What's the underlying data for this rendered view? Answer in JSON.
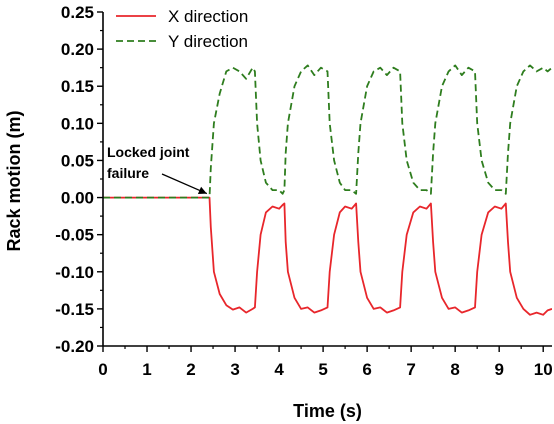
{
  "chart_data": {
    "type": "line",
    "xlabel": "Time (s)",
    "ylabel": "Rack motion (m)",
    "xlim": [
      0,
      10.2
    ],
    "ylim": [
      -0.2,
      0.25
    ],
    "xticks": [
      0,
      1,
      2,
      3,
      4,
      5,
      6,
      7,
      8,
      9,
      10
    ],
    "yticks": [
      -0.2,
      -0.15,
      -0.1,
      -0.05,
      0.0,
      0.05,
      0.1,
      0.15,
      0.2,
      0.25
    ],
    "ytick_labels": [
      "-0.20",
      "-0.15",
      "-0.10",
      "-0.05",
      "0.00",
      "0.05",
      "0.10",
      "0.15",
      "0.20",
      "0.25"
    ],
    "grid": false,
    "legend_position": "top-left",
    "annotation": {
      "lines": [
        "Locked joint",
        "failure"
      ],
      "x": 2.45,
      "y": 0.0
    },
    "series": [
      {
        "name": "X direction",
        "color": "#e8262b",
        "dash": "solid",
        "points": [
          [
            0,
            0
          ],
          [
            2.42,
            0
          ],
          [
            2.45,
            -0.04
          ],
          [
            2.52,
            -0.1
          ],
          [
            2.65,
            -0.13
          ],
          [
            2.8,
            -0.145
          ],
          [
            2.95,
            -0.151
          ],
          [
            3.1,
            -0.148
          ],
          [
            3.25,
            -0.155
          ],
          [
            3.4,
            -0.15
          ],
          [
            3.45,
            -0.148
          ],
          [
            3.5,
            -0.1
          ],
          [
            3.58,
            -0.05
          ],
          [
            3.7,
            -0.02
          ],
          [
            3.85,
            -0.012
          ],
          [
            4.0,
            -0.015
          ],
          [
            4.08,
            -0.01
          ],
          [
            4.12,
            -0.008
          ],
          [
            4.15,
            -0.06
          ],
          [
            4.2,
            -0.1
          ],
          [
            4.35,
            -0.135
          ],
          [
            4.5,
            -0.15
          ],
          [
            4.65,
            -0.148
          ],
          [
            4.8,
            -0.155
          ],
          [
            4.95,
            -0.152
          ],
          [
            5.1,
            -0.148
          ],
          [
            5.15,
            -0.1
          ],
          [
            5.25,
            -0.05
          ],
          [
            5.38,
            -0.02
          ],
          [
            5.5,
            -0.012
          ],
          [
            5.65,
            -0.015
          ],
          [
            5.75,
            -0.008
          ],
          [
            5.8,
            -0.06
          ],
          [
            5.85,
            -0.1
          ],
          [
            6.0,
            -0.135
          ],
          [
            6.15,
            -0.15
          ],
          [
            6.3,
            -0.148
          ],
          [
            6.45,
            -0.155
          ],
          [
            6.6,
            -0.152
          ],
          [
            6.75,
            -0.148
          ],
          [
            6.8,
            -0.1
          ],
          [
            6.9,
            -0.05
          ],
          [
            7.05,
            -0.02
          ],
          [
            7.2,
            -0.012
          ],
          [
            7.35,
            -0.015
          ],
          [
            7.45,
            -0.008
          ],
          [
            7.5,
            -0.06
          ],
          [
            7.55,
            -0.1
          ],
          [
            7.7,
            -0.135
          ],
          [
            7.85,
            -0.15
          ],
          [
            8.0,
            -0.148
          ],
          [
            8.15,
            -0.155
          ],
          [
            8.3,
            -0.152
          ],
          [
            8.45,
            -0.148
          ],
          [
            8.5,
            -0.1
          ],
          [
            8.6,
            -0.05
          ],
          [
            8.75,
            -0.02
          ],
          [
            8.9,
            -0.012
          ],
          [
            9.05,
            -0.015
          ],
          [
            9.15,
            -0.008
          ],
          [
            9.2,
            -0.06
          ],
          [
            9.25,
            -0.1
          ],
          [
            9.4,
            -0.135
          ],
          [
            9.55,
            -0.15
          ],
          [
            9.7,
            -0.158
          ],
          [
            9.85,
            -0.155
          ],
          [
            10.0,
            -0.158
          ],
          [
            10.1,
            -0.152
          ],
          [
            10.2,
            -0.15
          ]
        ]
      },
      {
        "name": "Y direction",
        "color": "#2e7d1e",
        "dash": "dashed",
        "points": [
          [
            0,
            0
          ],
          [
            2.42,
            0
          ],
          [
            2.45,
            0.04
          ],
          [
            2.52,
            0.1
          ],
          [
            2.65,
            0.14
          ],
          [
            2.8,
            0.17
          ],
          [
            2.95,
            0.175
          ],
          [
            3.1,
            0.17
          ],
          [
            3.25,
            0.16
          ],
          [
            3.4,
            0.175
          ],
          [
            3.45,
            0.17
          ],
          [
            3.5,
            0.1
          ],
          [
            3.58,
            0.05
          ],
          [
            3.7,
            0.02
          ],
          [
            3.85,
            0.01
          ],
          [
            4.0,
            0.01
          ],
          [
            4.08,
            0.005
          ],
          [
            4.12,
            0.01
          ],
          [
            4.15,
            0.06
          ],
          [
            4.2,
            0.1
          ],
          [
            4.35,
            0.15
          ],
          [
            4.5,
            0.17
          ],
          [
            4.65,
            0.178
          ],
          [
            4.8,
            0.165
          ],
          [
            4.95,
            0.175
          ],
          [
            5.1,
            0.17
          ],
          [
            5.15,
            0.1
          ],
          [
            5.25,
            0.05
          ],
          [
            5.38,
            0.02
          ],
          [
            5.5,
            0.01
          ],
          [
            5.65,
            0.01
          ],
          [
            5.75,
            0.005
          ],
          [
            5.8,
            0.06
          ],
          [
            5.85,
            0.1
          ],
          [
            6.0,
            0.15
          ],
          [
            6.15,
            0.17
          ],
          [
            6.3,
            0.175
          ],
          [
            6.45,
            0.165
          ],
          [
            6.6,
            0.175
          ],
          [
            6.75,
            0.17
          ],
          [
            6.8,
            0.1
          ],
          [
            6.9,
            0.05
          ],
          [
            7.05,
            0.02
          ],
          [
            7.2,
            0.01
          ],
          [
            7.35,
            0.01
          ],
          [
            7.45,
            0.005
          ],
          [
            7.5,
            0.06
          ],
          [
            7.55,
            0.1
          ],
          [
            7.7,
            0.15
          ],
          [
            7.85,
            0.17
          ],
          [
            8.0,
            0.178
          ],
          [
            8.15,
            0.165
          ],
          [
            8.3,
            0.175
          ],
          [
            8.45,
            0.17
          ],
          [
            8.5,
            0.1
          ],
          [
            8.6,
            0.05
          ],
          [
            8.75,
            0.02
          ],
          [
            8.9,
            0.01
          ],
          [
            9.05,
            0.01
          ],
          [
            9.15,
            0.005
          ],
          [
            9.2,
            0.06
          ],
          [
            9.25,
            0.1
          ],
          [
            9.4,
            0.15
          ],
          [
            9.55,
            0.17
          ],
          [
            9.7,
            0.178
          ],
          [
            9.85,
            0.17
          ],
          [
            10.0,
            0.175
          ],
          [
            10.1,
            0.17
          ],
          [
            10.2,
            0.175
          ]
        ]
      }
    ]
  }
}
